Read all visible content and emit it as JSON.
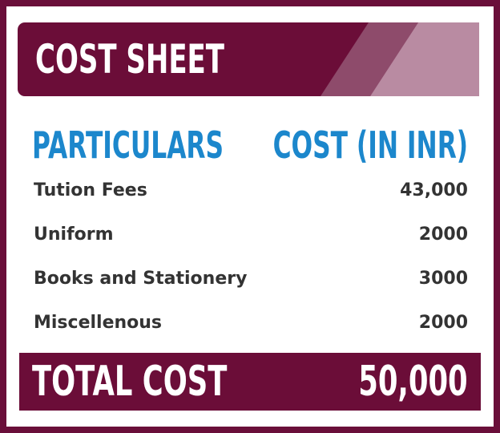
{
  "header": {
    "title": "COST SHEET"
  },
  "table": {
    "columns": [
      "PARTICULARS",
      "COST (IN INR)"
    ],
    "rows": [
      [
        "Tution Fees",
        "43,000"
      ],
      [
        "Uniform",
        "2000"
      ],
      [
        "Books and Stationery",
        "3000"
      ],
      [
        "Miscellenous",
        "2000"
      ]
    ]
  },
  "total": {
    "label": "TOTAL COST",
    "value": "50,000"
  }
}
